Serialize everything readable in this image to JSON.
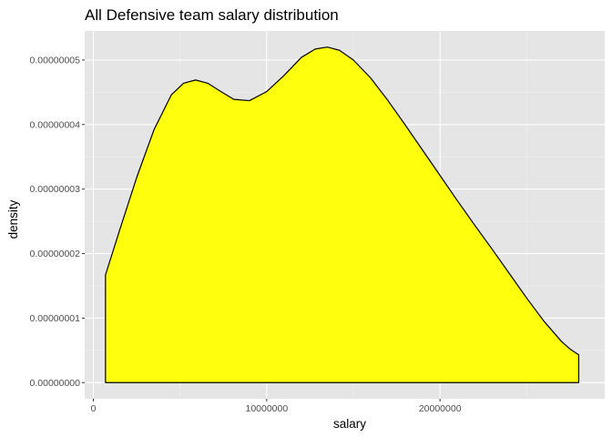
{
  "chart_data": {
    "type": "area",
    "title": "All Defensive team salary distribution",
    "xlabel": "salary",
    "ylabel": "density",
    "xlim": [
      -500000,
      29500000
    ],
    "ylim": [
      -2.5e-09,
      5.45e-08
    ],
    "xticks": [
      0,
      10000000,
      20000000
    ],
    "xtick_labels": [
      "0",
      "10000000",
      "20000000"
    ],
    "yticks": [
      0,
      1e-08,
      2e-08,
      3e-08,
      4e-08,
      5e-08
    ],
    "ytick_labels": [
      "0.00000000",
      "0.00000001",
      "0.00000002",
      "0.00000003",
      "0.00000004",
      "0.00000005"
    ],
    "grid": true,
    "legend": "none",
    "series": [
      {
        "fill": "#ffff0d",
        "stroke": "#000000",
        "x": [
          700000,
          1500000,
          2500000,
          3500000,
          4500000,
          5200000,
          5900000,
          6600000,
          7300000,
          8100000,
          9000000,
          10000000,
          11000000,
          12000000,
          12800000,
          13500000,
          14200000,
          15000000,
          16000000,
          17000000,
          18000000,
          19000000,
          20000000,
          21000000,
          22000000,
          23000000,
          24000000,
          25000000,
          26000000,
          27000000,
          27500000,
          28000000
        ],
        "y": [
          1.67e-08,
          2.35e-08,
          3.18e-08,
          3.92e-08,
          4.46e-08,
          4.64e-08,
          4.69e-08,
          4.64e-08,
          4.52e-08,
          4.39e-08,
          4.37e-08,
          4.51e-08,
          4.76e-08,
          5.04e-08,
          5.17e-08,
          5.2e-08,
          5.15e-08,
          5e-08,
          4.72e-08,
          4.37e-08,
          3.99e-08,
          3.6e-08,
          3.21e-08,
          2.82e-08,
          2.44e-08,
          2.07e-08,
          1.69e-08,
          1.31e-08,
          9.5e-09,
          6.4e-09,
          5.2e-09,
          4.3e-09
        ]
      }
    ]
  }
}
